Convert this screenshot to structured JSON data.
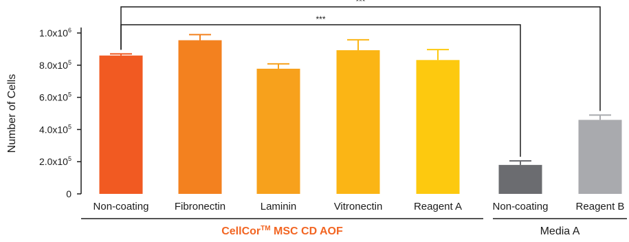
{
  "chart_data": {
    "type": "bar",
    "ylabel": "Number of Cells",
    "ylim": [
      0,
      1000000
    ],
    "yticks": [
      {
        "value": 0,
        "base": "0",
        "exp": ""
      },
      {
        "value": 200000,
        "base": "2.0x10",
        "exp": "5"
      },
      {
        "value": 400000,
        "base": "4.0x10",
        "exp": "5"
      },
      {
        "value": 600000,
        "base": "6.0x10",
        "exp": "5"
      },
      {
        "value": 800000,
        "base": "8.0x10",
        "exp": "5"
      },
      {
        "value": 1000000,
        "base": "1.0x10",
        "exp": "6"
      }
    ],
    "categories": [
      "Non-coating",
      "Fibronectin",
      "Laminin",
      "Vitronectin",
      "Reagent A",
      "Non-coating",
      "Reagent B"
    ],
    "values": [
      860000,
      955000,
      778000,
      893000,
      832000,
      180000,
      460000
    ],
    "errors": [
      10000,
      35000,
      30000,
      65000,
      65000,
      25000,
      30000
    ],
    "colors": {
      "bars": [
        "#f15a22",
        "#f3811f",
        "#f7a11c",
        "#fbb515",
        "#fdc90f",
        "#6b6c70",
        "#a9aaae"
      ],
      "group_label_cellcor": "#f26522",
      "group_label_media": "#1a1a1a",
      "axis": "#1a1a1a"
    },
    "groups": [
      {
        "name": "CellCor",
        "sup": "TM",
        "suffix": " MSC CD AOF",
        "from": 0,
        "to": 4
      },
      {
        "name": "Media A",
        "sup": "",
        "suffix": "",
        "from": 5,
        "to": 6
      }
    ],
    "significance": [
      {
        "from": 0,
        "to": 6,
        "label": "***"
      },
      {
        "from": 0,
        "to": 5,
        "label": "***"
      }
    ]
  }
}
